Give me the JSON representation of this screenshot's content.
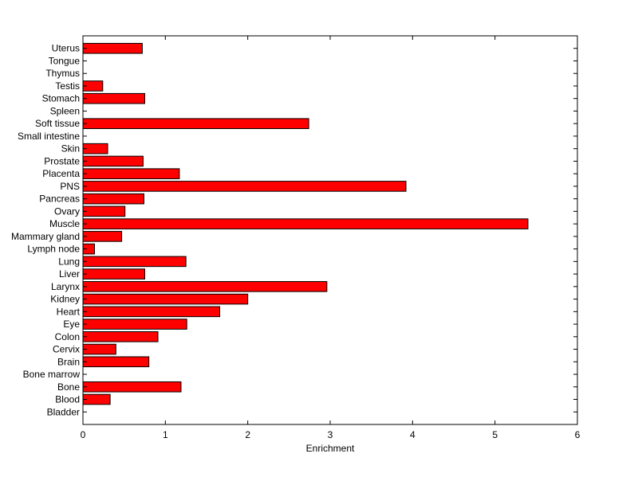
{
  "chart_data": {
    "type": "bar",
    "orientation": "horizontal",
    "xlabel": "Enrichment",
    "ylabel": "",
    "xlim": [
      0,
      6
    ],
    "xticks": [
      0,
      1,
      2,
      3,
      4,
      5,
      6
    ],
    "grid": false,
    "bar_color": "#ff0000",
    "bar_edge_color": "#000000",
    "categories": [
      "Uterus",
      "Tongue",
      "Thymus",
      "Testis",
      "Stomach",
      "Spleen",
      "Soft tissue",
      "Small intestine",
      "Skin",
      "Prostate",
      "Placenta",
      "PNS",
      "Pancreas",
      "Ovary",
      "Muscle",
      "Mammary gland",
      "Lymph node",
      "Lung",
      "Liver",
      "Larynx",
      "Kidney",
      "Heart",
      "Eye",
      "Colon",
      "Cervix",
      "Brain",
      "Bone marrow",
      "Bone",
      "Blood",
      "Bladder"
    ],
    "values": [
      0.72,
      0,
      0,
      0.24,
      0.75,
      0,
      2.74,
      0,
      0.3,
      0.73,
      1.17,
      3.92,
      0.74,
      0.51,
      5.4,
      0.47,
      0.14,
      1.25,
      0.75,
      2.96,
      2.0,
      1.66,
      1.26,
      0.91,
      0.4,
      0.8,
      0,
      1.19,
      0.33,
      0
    ]
  }
}
